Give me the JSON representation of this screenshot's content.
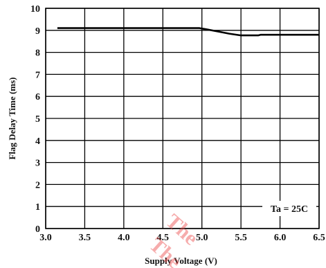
{
  "chart_data": {
    "type": "line",
    "xlabel": "Supply Voltage (V)",
    "ylabel": "Flag Delay Time (ms)",
    "xlim": [
      3.0,
      6.5
    ],
    "ylim": [
      0,
      10
    ],
    "xticks": [
      "3.0",
      "3.5",
      "4.0",
      "4.5",
      "5.0",
      "5.5",
      "6.0",
      "6.5"
    ],
    "yticks": [
      "0",
      "1",
      "2",
      "3",
      "4",
      "5",
      "6",
      "7",
      "8",
      "9",
      "10"
    ],
    "grid": true,
    "annotation": "Ta = 25C",
    "series": [
      {
        "x": [
          3.15,
          3.5,
          4.0,
          4.5,
          4.97,
          5.05,
          5.2,
          5.35,
          5.5,
          5.72,
          5.75,
          6.0,
          6.5
        ],
        "y": [
          9.1,
          9.1,
          9.1,
          9.1,
          9.1,
          9.05,
          8.95,
          8.85,
          8.77,
          8.77,
          8.8,
          8.8,
          8.8
        ]
      }
    ],
    "colors": {
      "line": "#000000",
      "grid": "#000000"
    }
  },
  "watermark": {
    "text": "The",
    "color": "#e84a4a"
  }
}
